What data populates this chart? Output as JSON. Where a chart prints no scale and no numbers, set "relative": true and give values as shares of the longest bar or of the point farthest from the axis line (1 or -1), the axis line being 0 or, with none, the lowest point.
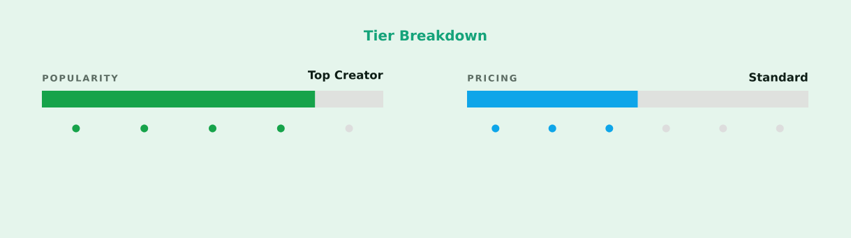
{
  "chart_data": [
    {
      "type": "bar",
      "orientation": "horizontal",
      "stacked": true,
      "relative": true,
      "title": "Tier Breakdown",
      "subtitle": "POPULARITY",
      "annotations": [
        "Top Creator"
      ],
      "categories": [
        null
      ],
      "series": [
        {
          "color": "#16a34a",
          "values": [
            0.8
          ]
        },
        {
          "color": "#dfe1de",
          "values": [
            0.2
          ]
        }
      ]
    },
    {
      "type": "bar",
      "orientation": "horizontal",
      "stacked": true,
      "relative": true,
      "subtitle": "PRICING",
      "annotations": [
        "Standard"
      ],
      "categories": [
        null
      ],
      "series": [
        {
          "color": "#0ea5e9",
          "values": [
            0.5
          ]
        },
        {
          "color": "#dfe1de",
          "values": [
            0.5
          ]
        }
      ]
    }
  ]
}
